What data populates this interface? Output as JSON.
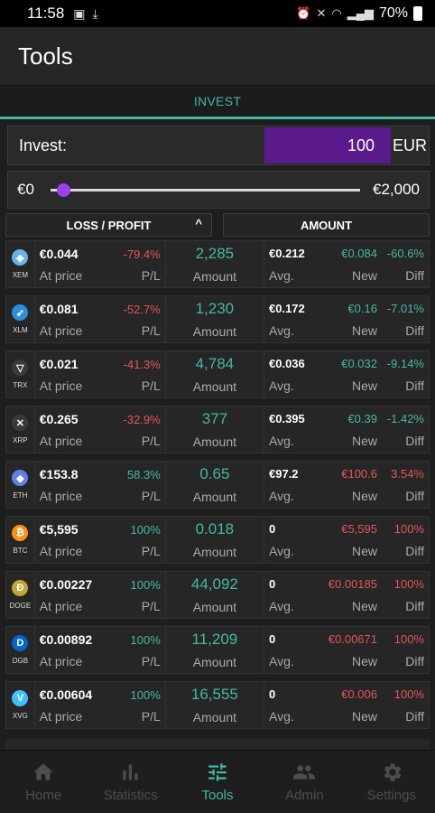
{
  "status": {
    "time": "11:58",
    "battery": "70%"
  },
  "app": {
    "title": "Tools"
  },
  "tab": {
    "label": "INVEST"
  },
  "invest": {
    "label": "Invest:",
    "value": "100",
    "currency": "EUR"
  },
  "slider": {
    "min": "€0",
    "max": "€2,000",
    "position": 0.01
  },
  "sort": {
    "loss_profit": "LOSS / PROFIT",
    "amount": "AMOUNT"
  },
  "labels": {
    "at_price": "At price",
    "pl": "P/L",
    "amount": "Amount",
    "avg": "Avg.",
    "new": "New",
    "diff": "Diff"
  },
  "rows": [
    {
      "symbol": "XEM",
      "price": "€0.044",
      "pl": "-79.4%",
      "amount": "2,285",
      "avg": "€0.212",
      "new": "€0.084",
      "diff": "-60.6%"
    },
    {
      "symbol": "XLM",
      "price": "€0.081",
      "pl": "-52.7%",
      "amount": "1,230",
      "avg": "€0.172",
      "new": "€0.16",
      "diff": "-7.01%"
    },
    {
      "symbol": "TRX",
      "price": "€0.021",
      "pl": "-41.3%",
      "amount": "4,784",
      "avg": "€0.036",
      "new": "€0.032",
      "diff": "-9.14%"
    },
    {
      "symbol": "XRP",
      "price": "€0.265",
      "pl": "-32.9%",
      "amount": "377",
      "avg": "€0.395",
      "new": "€0.39",
      "diff": "-1.42%"
    },
    {
      "symbol": "ETH",
      "price": "€153.8",
      "pl": "58.3%",
      "amount": "0.65",
      "avg": "€97.2",
      "new": "€100.6",
      "diff": "3.54%"
    },
    {
      "symbol": "BTC",
      "price": "€5,595",
      "pl": "100%",
      "amount": "0.018",
      "avg": "0",
      "new": "€5,595",
      "diff": "100%"
    },
    {
      "symbol": "DOGE",
      "price": "€0.00227",
      "pl": "100%",
      "amount": "44,092",
      "avg": "0",
      "new": "€0.00185",
      "diff": "100%"
    },
    {
      "symbol": "DGB",
      "price": "€0.00892",
      "pl": "100%",
      "amount": "11,209",
      "avg": "0",
      "new": "€0.00671",
      "diff": "100%"
    },
    {
      "symbol": "XVG",
      "price": "€0.00604",
      "pl": "100%",
      "amount": "16,555",
      "avg": "0",
      "new": "€0.006",
      "diff": "100%"
    }
  ],
  "nav": [
    {
      "label": "Home"
    },
    {
      "label": "Statistics"
    },
    {
      "label": "Tools"
    },
    {
      "label": "Admin"
    },
    {
      "label": "Settings"
    }
  ],
  "colors": {
    "accent": "#43b9a3",
    "negative": "#e45757",
    "input_bg": "#5a1a8c",
    "slider_thumb": "#9c3ff0"
  }
}
